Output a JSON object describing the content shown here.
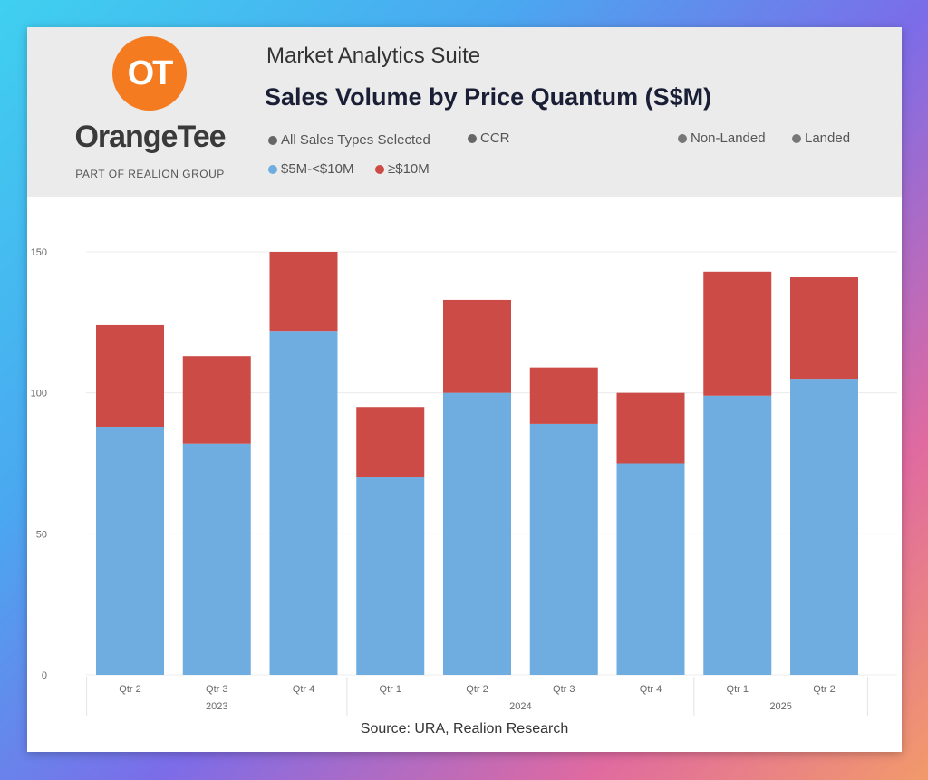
{
  "header": {
    "logo_text": "OT",
    "brand": "OrangeTee",
    "brand_sub": "PART OF REALION GROUP",
    "suite": "Market Analytics Suite"
  },
  "filters": [
    {
      "label": "All Sales Types Selected",
      "color": "#666666"
    },
    {
      "label": "CCR",
      "color": "#666666"
    },
    {
      "label": "Non-Landed",
      "color": "#777777"
    },
    {
      "label": "Landed",
      "color": "#777777"
    }
  ],
  "source": "Source: URA, Realion Research",
  "chart_data": {
    "type": "bar",
    "stacked": true,
    "title": "Sales Volume by Price Quantum (S$M)",
    "categories": [
      "Qtr 2",
      "Qtr 3",
      "Qtr 4",
      "Qtr 1",
      "Qtr 2",
      "Qtr 3",
      "Qtr 4",
      "Qtr 1",
      "Qtr 2"
    ],
    "year_groups": [
      {
        "label": "2023",
        "count": 3
      },
      {
        "label": "2024",
        "count": 4
      },
      {
        "label": "2025",
        "count": 2
      }
    ],
    "series": [
      {
        "name": "$5M-<$10M",
        "color": "#6fade0",
        "values": [
          88,
          82,
          122,
          70,
          100,
          89,
          75,
          99,
          105
        ]
      },
      {
        "name": "≥$10M",
        "color": "#cc4b46",
        "values": [
          36,
          31,
          28,
          25,
          33,
          20,
          25,
          44,
          36
        ]
      }
    ],
    "ylim": [
      0,
      150
    ],
    "yticks": [
      0,
      50,
      100,
      150
    ],
    "grid": true,
    "legend_position": "top"
  }
}
